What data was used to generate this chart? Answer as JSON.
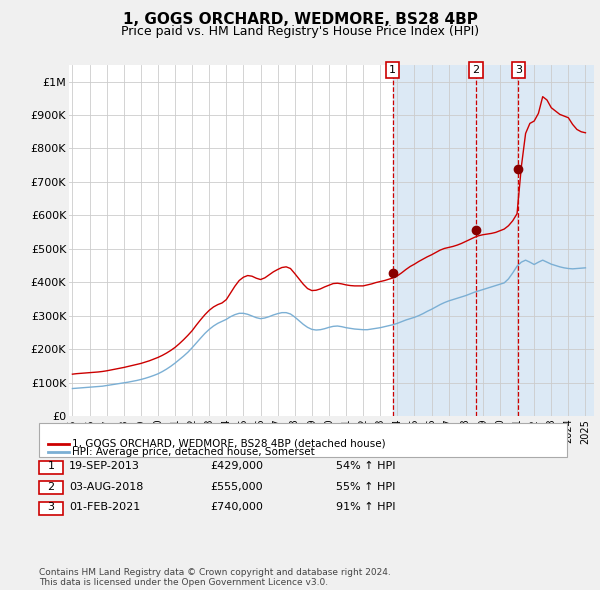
{
  "title": "1, GOGS ORCHARD, WEDMORE, BS28 4BP",
  "subtitle": "Price paid vs. HM Land Registry's House Price Index (HPI)",
  "title_fontsize": 11,
  "subtitle_fontsize": 9,
  "ylabel_ticks": [
    "£0",
    "£100K",
    "£200K",
    "£300K",
    "£400K",
    "£500K",
    "£600K",
    "£700K",
    "£800K",
    "£900K",
    "£1M"
  ],
  "ytick_values": [
    0,
    100000,
    200000,
    300000,
    400000,
    500000,
    600000,
    700000,
    800000,
    900000,
    1000000
  ],
  "ylim": [
    0,
    1050000
  ],
  "xlim_start": 1994.8,
  "xlim_end": 2025.5,
  "background_color": "#f0f0f0",
  "plot_bg_color": "#ffffff",
  "shaded_region_color": "#dce9f5",
  "grid_color": "#cccccc",
  "red_line_color": "#cc0000",
  "blue_line_color": "#7bafd4",
  "dashed_line_color": "#cc0000",
  "marker_color": "#880000",
  "transactions": [
    {
      "id": 1,
      "year": 2013.72,
      "price": 429000,
      "label": "1",
      "date": "19-SEP-2013",
      "pct": "54%",
      "dir": "↑"
    },
    {
      "id": 2,
      "year": 2018.58,
      "price": 555000,
      "label": "2",
      "date": "03-AUG-2018",
      "pct": "55%",
      "dir": "↑"
    },
    {
      "id": 3,
      "year": 2021.08,
      "price": 740000,
      "label": "3",
      "date": "01-FEB-2021",
      "pct": "91%",
      "dir": "↑"
    }
  ],
  "legend_entries": [
    {
      "label": "1, GOGS ORCHARD, WEDMORE, BS28 4BP (detached house)",
      "color": "#cc0000"
    },
    {
      "label": "HPI: Average price, detached house, Somerset",
      "color": "#7bafd4"
    }
  ],
  "footnote": "Contains HM Land Registry data © Crown copyright and database right 2024.\nThis data is licensed under the Open Government Licence v3.0.",
  "hpi_red_data": [
    [
      1995.0,
      125000
    ],
    [
      1995.25,
      126500
    ],
    [
      1995.5,
      127500
    ],
    [
      1995.75,
      128500
    ],
    [
      1996.0,
      129500
    ],
    [
      1996.25,
      130500
    ],
    [
      1996.5,
      131500
    ],
    [
      1996.75,
      133000
    ],
    [
      1997.0,
      135000
    ],
    [
      1997.25,
      137500
    ],
    [
      1997.5,
      140000
    ],
    [
      1997.75,
      142500
    ],
    [
      1998.0,
      145000
    ],
    [
      1998.25,
      148000
    ],
    [
      1998.5,
      151000
    ],
    [
      1998.75,
      154000
    ],
    [
      1999.0,
      157000
    ],
    [
      1999.25,
      161000
    ],
    [
      1999.5,
      165000
    ],
    [
      1999.75,
      170000
    ],
    [
      2000.0,
      175000
    ],
    [
      2000.25,
      181000
    ],
    [
      2000.5,
      188000
    ],
    [
      2000.75,
      196000
    ],
    [
      2001.0,
      205000
    ],
    [
      2001.25,
      216000
    ],
    [
      2001.5,
      228000
    ],
    [
      2001.75,
      241000
    ],
    [
      2002.0,
      255000
    ],
    [
      2002.25,
      272000
    ],
    [
      2002.5,
      288000
    ],
    [
      2002.75,
      303000
    ],
    [
      2003.0,
      316000
    ],
    [
      2003.25,
      326000
    ],
    [
      2003.5,
      333000
    ],
    [
      2003.75,
      338000
    ],
    [
      2004.0,
      348000
    ],
    [
      2004.25,
      368000
    ],
    [
      2004.5,
      388000
    ],
    [
      2004.75,
      405000
    ],
    [
      2005.0,
      415000
    ],
    [
      2005.25,
      420000
    ],
    [
      2005.5,
      418000
    ],
    [
      2005.75,
      412000
    ],
    [
      2006.0,
      408000
    ],
    [
      2006.25,
      413000
    ],
    [
      2006.5,
      422000
    ],
    [
      2006.75,
      431000
    ],
    [
      2007.0,
      438000
    ],
    [
      2007.25,
      444000
    ],
    [
      2007.5,
      446000
    ],
    [
      2007.75,
      441000
    ],
    [
      2008.0,
      426000
    ],
    [
      2008.25,
      410000
    ],
    [
      2008.5,
      394000
    ],
    [
      2008.75,
      381000
    ],
    [
      2009.0,
      375000
    ],
    [
      2009.25,
      376000
    ],
    [
      2009.5,
      380000
    ],
    [
      2009.75,
      386000
    ],
    [
      2010.0,
      391000
    ],
    [
      2010.25,
      396000
    ],
    [
      2010.5,
      397000
    ],
    [
      2010.75,
      395000
    ],
    [
      2011.0,
      392000
    ],
    [
      2011.25,
      390000
    ],
    [
      2011.5,
      389000
    ],
    [
      2011.75,
      389000
    ],
    [
      2012.0,
      389000
    ],
    [
      2012.25,
      392000
    ],
    [
      2012.5,
      395000
    ],
    [
      2012.75,
      399000
    ],
    [
      2013.0,
      402000
    ],
    [
      2013.25,
      405000
    ],
    [
      2013.5,
      409000
    ],
    [
      2013.75,
      413000
    ],
    [
      2014.0,
      419000
    ],
    [
      2014.25,
      428000
    ],
    [
      2014.5,
      438000
    ],
    [
      2014.75,
      447000
    ],
    [
      2015.0,
      454000
    ],
    [
      2015.25,
      462000
    ],
    [
      2015.5,
      469000
    ],
    [
      2015.75,
      476000
    ],
    [
      2016.0,
      482000
    ],
    [
      2016.25,
      489000
    ],
    [
      2016.5,
      496000
    ],
    [
      2016.75,
      501000
    ],
    [
      2017.0,
      504000
    ],
    [
      2017.25,
      507000
    ],
    [
      2017.5,
      511000
    ],
    [
      2017.75,
      516000
    ],
    [
      2018.0,
      522000
    ],
    [
      2018.25,
      528000
    ],
    [
      2018.5,
      534000
    ],
    [
      2018.75,
      539000
    ],
    [
      2019.0,
      542000
    ],
    [
      2019.25,
      544000
    ],
    [
      2019.5,
      546000
    ],
    [
      2019.75,
      549000
    ],
    [
      2020.0,
      554000
    ],
    [
      2020.25,
      559000
    ],
    [
      2020.5,
      569000
    ],
    [
      2020.75,
      584000
    ],
    [
      2021.0,
      605000
    ],
    [
      2021.25,
      745000
    ],
    [
      2021.5,
      845000
    ],
    [
      2021.75,
      875000
    ],
    [
      2022.0,
      882000
    ],
    [
      2022.25,
      905000
    ],
    [
      2022.5,
      955000
    ],
    [
      2022.75,
      945000
    ],
    [
      2023.0,
      922000
    ],
    [
      2023.25,
      912000
    ],
    [
      2023.5,
      902000
    ],
    [
      2023.75,
      897000
    ],
    [
      2024.0,
      892000
    ],
    [
      2024.25,
      872000
    ],
    [
      2024.5,
      857000
    ],
    [
      2024.75,
      850000
    ],
    [
      2025.0,
      847000
    ]
  ],
  "hpi_blue_data": [
    [
      1995.0,
      82000
    ],
    [
      1995.25,
      83000
    ],
    [
      1995.5,
      84000
    ],
    [
      1995.75,
      85000
    ],
    [
      1996.0,
      86000
    ],
    [
      1996.25,
      87000
    ],
    [
      1996.5,
      88000
    ],
    [
      1996.75,
      89000
    ],
    [
      1997.0,
      91000
    ],
    [
      1997.25,
      93000
    ],
    [
      1997.5,
      95000
    ],
    [
      1997.75,
      97000
    ],
    [
      1998.0,
      99000
    ],
    [
      1998.25,
      101000
    ],
    [
      1998.5,
      103500
    ],
    [
      1998.75,
      106000
    ],
    [
      1999.0,
      109000
    ],
    [
      1999.25,
      112500
    ],
    [
      1999.5,
      116500
    ],
    [
      1999.75,
      121000
    ],
    [
      2000.0,
      126000
    ],
    [
      2000.25,
      132500
    ],
    [
      2000.5,
      140000
    ],
    [
      2000.75,
      148500
    ],
    [
      2001.0,
      158000
    ],
    [
      2001.25,
      168500
    ],
    [
      2001.5,
      179000
    ],
    [
      2001.75,
      190500
    ],
    [
      2002.0,
      204000
    ],
    [
      2002.25,
      218500
    ],
    [
      2002.5,
      233000
    ],
    [
      2002.75,
      247000
    ],
    [
      2003.0,
      259000
    ],
    [
      2003.25,
      269000
    ],
    [
      2003.5,
      277000
    ],
    [
      2003.75,
      283000
    ],
    [
      2004.0,
      289000
    ],
    [
      2004.25,
      297000
    ],
    [
      2004.5,
      303000
    ],
    [
      2004.75,
      307000
    ],
    [
      2005.0,
      307000
    ],
    [
      2005.25,
      304000
    ],
    [
      2005.5,
      299000
    ],
    [
      2005.75,
      294000
    ],
    [
      2006.0,
      291000
    ],
    [
      2006.25,
      293000
    ],
    [
      2006.5,
      297000
    ],
    [
      2006.75,
      302000
    ],
    [
      2007.0,
      306000
    ],
    [
      2007.25,
      309000
    ],
    [
      2007.5,
      309000
    ],
    [
      2007.75,
      305000
    ],
    [
      2008.0,
      296000
    ],
    [
      2008.25,
      285000
    ],
    [
      2008.5,
      274000
    ],
    [
      2008.75,
      265000
    ],
    [
      2009.0,
      259000
    ],
    [
      2009.25,
      257000
    ],
    [
      2009.5,
      258000
    ],
    [
      2009.75,
      261000
    ],
    [
      2010.0,
      265000
    ],
    [
      2010.25,
      268000
    ],
    [
      2010.5,
      269000
    ],
    [
      2010.75,
      267000
    ],
    [
      2011.0,
      264000
    ],
    [
      2011.25,
      262000
    ],
    [
      2011.5,
      260000
    ],
    [
      2011.75,
      259000
    ],
    [
      2012.0,
      258000
    ],
    [
      2012.25,
      258000
    ],
    [
      2012.5,
      260000
    ],
    [
      2012.75,
      262000
    ],
    [
      2013.0,
      264000
    ],
    [
      2013.25,
      267000
    ],
    [
      2013.5,
      270000
    ],
    [
      2013.75,
      273000
    ],
    [
      2014.0,
      277000
    ],
    [
      2014.25,
      282000
    ],
    [
      2014.5,
      287000
    ],
    [
      2014.75,
      291000
    ],
    [
      2015.0,
      295000
    ],
    [
      2015.25,
      300000
    ],
    [
      2015.5,
      306000
    ],
    [
      2015.75,
      313000
    ],
    [
      2016.0,
      319000
    ],
    [
      2016.25,
      326000
    ],
    [
      2016.5,
      333000
    ],
    [
      2016.75,
      339000
    ],
    [
      2017.0,
      344000
    ],
    [
      2017.25,
      348000
    ],
    [
      2017.5,
      352000
    ],
    [
      2017.75,
      356000
    ],
    [
      2018.0,
      360000
    ],
    [
      2018.25,
      365000
    ],
    [
      2018.5,
      370000
    ],
    [
      2018.75,
      374000
    ],
    [
      2019.0,
      378000
    ],
    [
      2019.25,
      382000
    ],
    [
      2019.5,
      386000
    ],
    [
      2019.75,
      390000
    ],
    [
      2020.0,
      394000
    ],
    [
      2020.25,
      398000
    ],
    [
      2020.5,
      410000
    ],
    [
      2020.75,
      428000
    ],
    [
      2021.0,
      448000
    ],
    [
      2021.25,
      460000
    ],
    [
      2021.5,
      466000
    ],
    [
      2021.75,
      460000
    ],
    [
      2022.0,
      453000
    ],
    [
      2022.25,
      460000
    ],
    [
      2022.5,
      466000
    ],
    [
      2022.75,
      460000
    ],
    [
      2023.0,
      454000
    ],
    [
      2023.25,
      450000
    ],
    [
      2023.5,
      446000
    ],
    [
      2023.75,
      443000
    ],
    [
      2024.0,
      441000
    ],
    [
      2024.25,
      440000
    ],
    [
      2024.5,
      441000
    ],
    [
      2024.75,
      442000
    ],
    [
      2025.0,
      443000
    ]
  ]
}
